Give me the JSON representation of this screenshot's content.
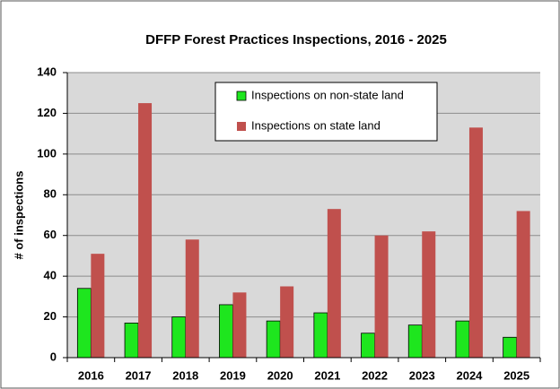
{
  "chart_data": {
    "type": "bar",
    "title": "DFFP Forest Practices Inspections, 2016 - 2025",
    "y_label": "# of inspections",
    "categories": [
      "2016",
      "2017",
      "2018",
      "2019",
      "2020",
      "2021",
      "2022",
      "2023",
      "2024",
      "2025"
    ],
    "series": [
      {
        "name": "Inspections on non-state land",
        "color": "#1ee61e",
        "values": [
          34,
          17,
          20,
          26,
          18,
          22,
          12,
          16,
          18,
          10
        ]
      },
      {
        "name": "Inspections on state land",
        "color": "#c0504d",
        "values": [
          51,
          125,
          58,
          32,
          35,
          73,
          60,
          62,
          113,
          72
        ]
      }
    ],
    "ylim": [
      0,
      140
    ],
    "yticks": [
      0,
      20,
      40,
      60,
      80,
      100,
      120,
      140
    ],
    "grid": true,
    "legend": "top"
  }
}
